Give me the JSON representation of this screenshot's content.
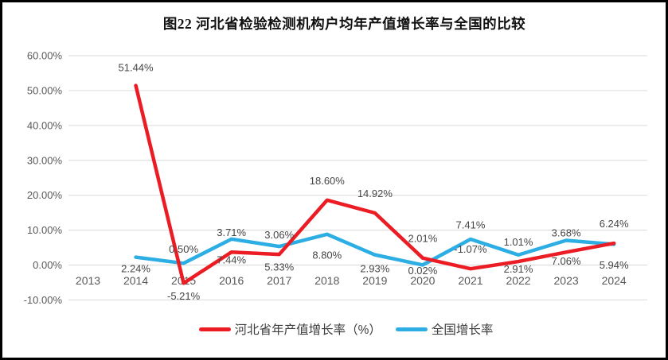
{
  "figure": {
    "title": "图22 河北省检验检测机构户均年产值增长率与全国的比较"
  },
  "chart_data": {
    "type": "line",
    "title": "图22 河北省检验检测机构户均年产值增长率与全国的比较",
    "categories": [
      "2013",
      "2014",
      "2015",
      "2016",
      "2017",
      "2018",
      "2019",
      "2020",
      "2021",
      "2022",
      "2023",
      "2024"
    ],
    "ylim": [
      -10,
      60
    ],
    "y_tick_values": [
      60,
      50,
      40,
      30,
      20,
      10,
      0,
      -10
    ],
    "y_tick_labels": [
      "60.00%",
      "50.00%",
      "40.00%",
      "30.00%",
      "20.00%",
      "10.00%",
      "0.00%",
      "-10.00%"
    ],
    "grid": true,
    "legend_position": "bottom",
    "series": [
      {
        "name": "河北省年产值增长率（%）",
        "color": "#eb1c24",
        "values": [
          null,
          51.44,
          -5.21,
          3.71,
          3.06,
          18.6,
          14.92,
          2.01,
          -1.07,
          1.01,
          3.68,
          6.24
        ],
        "labels": [
          "",
          "51.44%",
          "-5.21%",
          "3.71%",
          "3.06%",
          "18.60%",
          "14.92%",
          "2.01%",
          "-1.07%",
          "1.01%",
          "3.68%",
          "6.24%"
        ]
      },
      {
        "name": "全国增长率",
        "color": "#2caee4",
        "values": [
          null,
          2.24,
          0.5,
          7.44,
          5.33,
          8.8,
          2.93,
          0.02,
          7.41,
          2.91,
          7.06,
          5.94
        ],
        "labels": [
          "",
          "2.24%",
          "0.50%",
          "7.44%",
          "5.33%",
          "8.80%",
          "2.93%",
          "0.02%",
          "7.41%",
          "2.91%",
          "7.06%",
          "5.94%"
        ]
      }
    ],
    "colors": {
      "gridline": "#d9d9d9",
      "axis_text": "#595959",
      "data_label_text": "#454545",
      "border": "#000000"
    }
  }
}
